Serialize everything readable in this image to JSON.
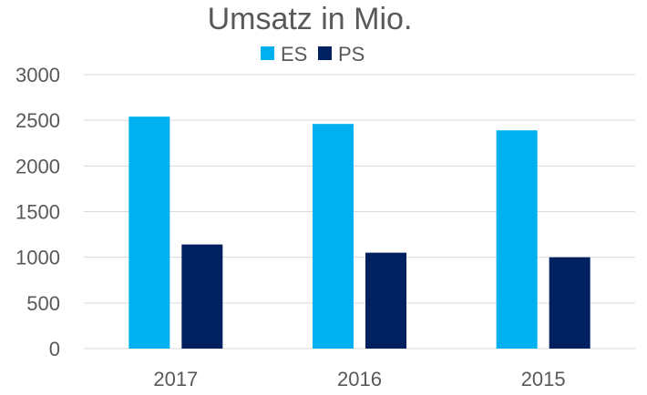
{
  "chart_data": {
    "type": "bar",
    "title": "Umsatz in Mio.",
    "categories": [
      "2017",
      "2016",
      "2015"
    ],
    "series": [
      {
        "name": "ES",
        "color": "#00b0f0",
        "values": [
          2540,
          2460,
          2390
        ]
      },
      {
        "name": "PS",
        "color": "#002060",
        "values": [
          1140,
          1050,
          1000
        ]
      }
    ],
    "ylim": [
      0,
      3000
    ],
    "yticks": [
      "0",
      "500",
      "1000",
      "1500",
      "2000",
      "2500",
      "3000"
    ],
    "grid": true,
    "legend": "top"
  }
}
